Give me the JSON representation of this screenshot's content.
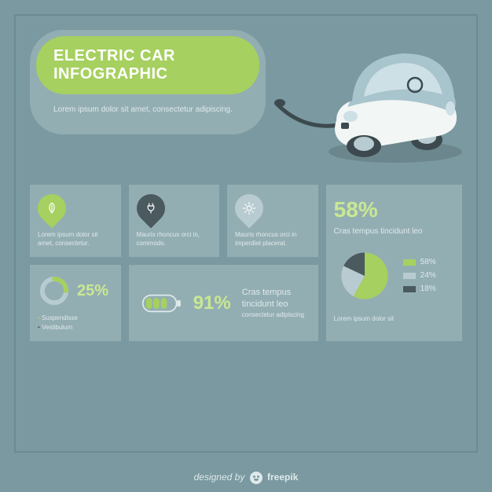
{
  "colors": {
    "bg": "#7a99a0",
    "border": "#6c8a91",
    "card": "#93aeb3",
    "accent": "#a6d05f",
    "accent2": "#c9e892",
    "dark": "#4a5a5f",
    "mid": "#b8cbd0",
    "muted": "#dfe9eb",
    "car_body": "#a8c4cc",
    "car_light": "#cde0e5",
    "car_white": "#f2f6f5",
    "car_wheel": "#3c4a4f"
  },
  "header": {
    "title": "ELECTRIC CAR INFOGRAPHIC",
    "subtitle": "Lorem ipsum dolor sit amet, consectetur adipiscing."
  },
  "features": [
    {
      "icon": "leaf",
      "icon_bg_key": "accent",
      "text": "Lorem ipsum dolor sit amet, consectetur."
    },
    {
      "icon": "plug",
      "icon_bg_key": "dark",
      "text": "Mauris rhoncus orci in, commodo."
    },
    {
      "icon": "sun",
      "icon_bg_key": "mid",
      "text": "Mauris rhoncus orci in imperdiet placerat."
    }
  ],
  "pie": {
    "headline_pct": "58%",
    "headline_text": "Cras tempus tincidunt leo",
    "slices": [
      {
        "label": "58%",
        "value": 58,
        "color_key": "accent"
      },
      {
        "label": "24%",
        "value": 24,
        "color_key": "mid"
      },
      {
        "label": "18%",
        "value": 18,
        "color_key": "dark"
      }
    ],
    "footer_text": "Lorem ipsum dolor sit"
  },
  "gauge": {
    "value": 25,
    "label": "25%",
    "bullets": [
      {
        "text": "Suspendisse",
        "style": "a"
      },
      {
        "text": "Vestibulum",
        "style": "b"
      }
    ],
    "ring_color_key": "accent",
    "track_color_key": "mid"
  },
  "battery": {
    "value": 91,
    "label": "91%",
    "line1": "Cras tempus tincidunt leo",
    "line2": "consectetur adipiscing",
    "segments": 4,
    "segments_filled": 3,
    "fill_color_key": "accent",
    "outline_color_key": "muted"
  },
  "footer": {
    "text_prefix": "designed by",
    "brand": "freepik"
  },
  "typography": {
    "title_fontsize": 20,
    "card_text_fontsize": 8,
    "big_pct_fontsize": 28
  }
}
